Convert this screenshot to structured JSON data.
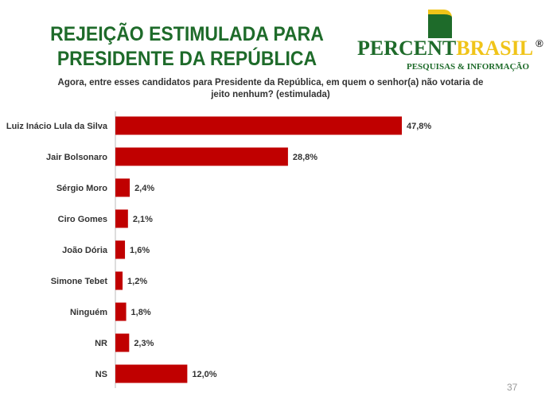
{
  "title": "REJEIÇÃO ESTIMULADA PARA PRESIDENTE DA REPÚBLICA",
  "logo": {
    "word_green": "PERCENT",
    "word_yellow": "BRASIL",
    "registered": "®",
    "subtitle": "PESQUISAS & INFORMAÇÃO"
  },
  "page_number": "37",
  "chart_data": {
    "type": "bar",
    "orientation": "horizontal",
    "title": "Agora, entre esses candidatos para Presidente da República, em quem o senhor(a) não votaria de jeito nenhum?  (estimulada)",
    "categories": [
      "Luiz Inácio Lula da Silva",
      "Jair Bolsonaro",
      "Sérgio Moro",
      "Ciro Gomes",
      "João Dória",
      "Simone Tebet",
      "Ninguém",
      "NR",
      "NS"
    ],
    "values": [
      47.8,
      28.8,
      2.4,
      2.1,
      1.6,
      1.2,
      1.8,
      2.3,
      12.0
    ],
    "labels": [
      "47,8%",
      "28,8%",
      "2,4%",
      "2,1%",
      "1,6%",
      "1,2%",
      "1,8%",
      "2,3%",
      "12,0%"
    ],
    "color": "#c00000",
    "xlabel": "",
    "ylabel": "",
    "xlim": [
      0,
      50
    ],
    "grid": false
  }
}
